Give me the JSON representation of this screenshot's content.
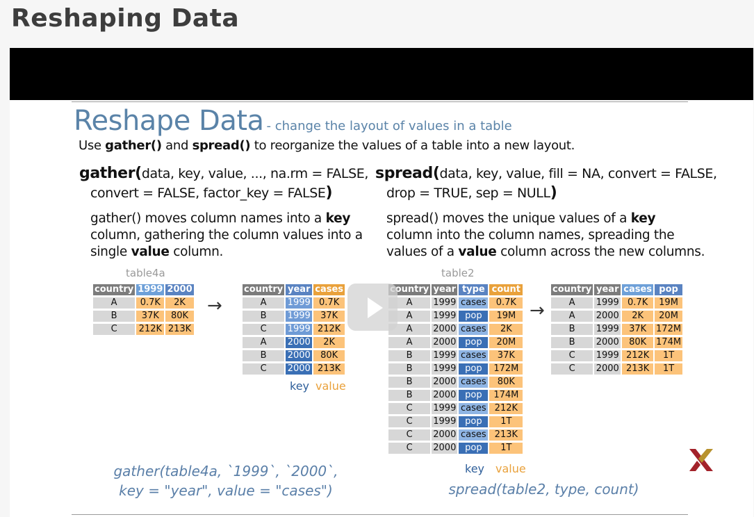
{
  "page": {
    "title": "Reshaping Data"
  },
  "slide": {
    "heading": "Reshape Data",
    "subheading": "- change the layout of values in a table",
    "intro_prefix": "Use ",
    "intro_gather": "gather()",
    "intro_and": " and ",
    "intro_spread": "spread()",
    "intro_suffix": " to reorganize the values of a table into a new layout."
  },
  "gather": {
    "fn": "gather",
    "open_paren": "(",
    "args_line1": "data, key, value, ..., na.rm = FALSE,",
    "args_line2": "convert = FALSE, factor_key = FALSE",
    "close_paren": ")",
    "desc_line1_pre": "gather() moves column names into a ",
    "desc_line1_bold": "key",
    "desc_line2": "column, gathering the column values into a",
    "desc_line3_pre": "single ",
    "desc_line3_bold": "value",
    "desc_line3_post": " column.",
    "source_caption": "table4a",
    "source_table": {
      "headers": [
        "country",
        "1999",
        "2000"
      ],
      "rows": [
        [
          "A",
          "0.7K",
          "2K"
        ],
        [
          "B",
          "37K",
          "80K"
        ],
        [
          "C",
          "212K",
          "213K"
        ]
      ]
    },
    "result_table": {
      "headers": [
        "country",
        "year",
        "cases"
      ],
      "rows": [
        [
          "A",
          "1999",
          "0.7K"
        ],
        [
          "B",
          "1999",
          "37K"
        ],
        [
          "C",
          "1999",
          "212K"
        ],
        [
          "A",
          "2000",
          "2K"
        ],
        [
          "B",
          "2000",
          "80K"
        ],
        [
          "C",
          "2000",
          "213K"
        ]
      ]
    },
    "key_label": "key",
    "value_label": "value",
    "code_line1": "gather(table4a, `1999`, `2000`,",
    "code_line2": "key = \"year\", value = \"cases\")"
  },
  "spread": {
    "fn": "spread",
    "open_paren": "(",
    "args_line1": "data, key, value, fill = NA, convert = FALSE,",
    "args_line2": "drop = TRUE, sep = NULL",
    "close_paren": ")",
    "desc_line1_pre": "spread() moves the unique values of a ",
    "desc_line1_bold": "key",
    "desc_line2": "column into the column names, spreading the",
    "desc_line3_pre": "values of a ",
    "desc_line3_bold": "value",
    "desc_line3_post": " column across the new columns.",
    "source_caption": "table2",
    "source_table": {
      "headers": [
        "country",
        "year",
        "type",
        "count"
      ],
      "rows": [
        [
          "A",
          "1999",
          "cases",
          "0.7K"
        ],
        [
          "A",
          "1999",
          "pop",
          "19M"
        ],
        [
          "A",
          "2000",
          "cases",
          "2K"
        ],
        [
          "A",
          "2000",
          "pop",
          "20M"
        ],
        [
          "B",
          "1999",
          "cases",
          "37K"
        ],
        [
          "B",
          "1999",
          "pop",
          "172M"
        ],
        [
          "B",
          "2000",
          "cases",
          "80K"
        ],
        [
          "B",
          "2000",
          "pop",
          "174M"
        ],
        [
          "C",
          "1999",
          "cases",
          "212K"
        ],
        [
          "C",
          "1999",
          "pop",
          "1T"
        ],
        [
          "C",
          "2000",
          "cases",
          "213K"
        ],
        [
          "C",
          "2000",
          "pop",
          "1T"
        ]
      ]
    },
    "result_table": {
      "headers": [
        "country",
        "year",
        "cases",
        "pop"
      ],
      "rows": [
        [
          "A",
          "1999",
          "0.7K",
          "19M"
        ],
        [
          "A",
          "2000",
          "2K",
          "20M"
        ],
        [
          "B",
          "1999",
          "37K",
          "172M"
        ],
        [
          "B",
          "2000",
          "80K",
          "174M"
        ],
        [
          "C",
          "1999",
          "212K",
          "1T"
        ],
        [
          "C",
          "2000",
          "213K",
          "1T"
        ]
      ]
    },
    "key_label": "key",
    "value_label": "value",
    "code": "spread(table2, type, count)"
  },
  "player": {
    "play_icon": "play-icon"
  },
  "colors": {
    "heading": "#5a83a8",
    "key_blue": "#3a6fb5",
    "value_orange": "#e9a13b",
    "header_gray": "#7c7c7c"
  }
}
